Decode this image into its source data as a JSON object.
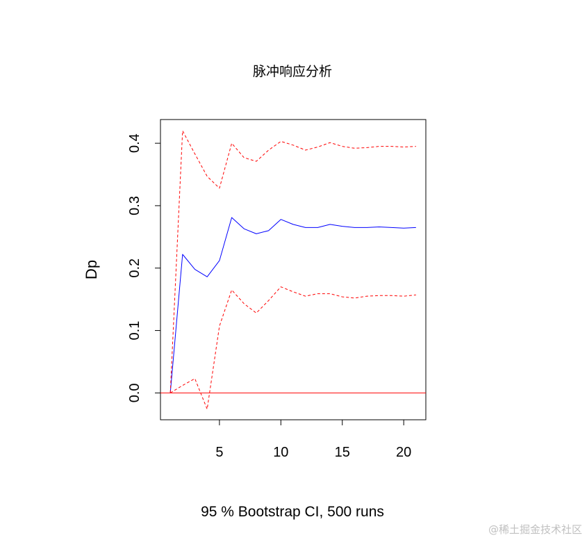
{
  "chart_data": {
    "type": "line",
    "title": "脉冲响应分析",
    "xlabel": "95 % Bootstrap CI,  500 runs",
    "ylabel": "Dp",
    "xlim": [
      0.2,
      21.8
    ],
    "ylim": [
      -0.043,
      0.438
    ],
    "xticks": [
      5,
      10,
      15,
      20
    ],
    "xtick_labels": [
      "5",
      "10",
      "15",
      "20"
    ],
    "yticks": [
      0.0,
      0.1,
      0.2,
      0.3,
      0.4
    ],
    "ytick_labels": [
      "0.0",
      "0.1",
      "0.2",
      "0.3",
      "0.4"
    ],
    "grid": false,
    "x": [
      1,
      2,
      3,
      4,
      5,
      6,
      7,
      8,
      9,
      10,
      11,
      12,
      13,
      14,
      15,
      16,
      17,
      18,
      19,
      20,
      21
    ],
    "series": [
      {
        "role": "estimate",
        "color": "#0000ff",
        "dashed": false,
        "values": [
          0.0,
          0.222,
          0.198,
          0.186,
          0.212,
          0.281,
          0.263,
          0.255,
          0.26,
          0.278,
          0.27,
          0.265,
          0.265,
          0.27,
          0.267,
          0.265,
          0.265,
          0.266,
          0.265,
          0.264,
          0.265
        ]
      },
      {
        "role": "upper",
        "color": "#ff0000",
        "dashed": true,
        "values": [
          0.0,
          0.42,
          0.383,
          0.347,
          0.328,
          0.4,
          0.377,
          0.371,
          0.389,
          0.403,
          0.397,
          0.389,
          0.394,
          0.401,
          0.395,
          0.392,
          0.393,
          0.395,
          0.395,
          0.394,
          0.395
        ]
      },
      {
        "role": "lower",
        "color": "#ff0000",
        "dashed": true,
        "values": [
          0.0,
          0.012,
          0.023,
          -0.026,
          0.107,
          0.165,
          0.143,
          0.128,
          0.148,
          0.17,
          0.162,
          0.155,
          0.159,
          0.159,
          0.154,
          0.152,
          0.155,
          0.156,
          0.156,
          0.155,
          0.157
        ]
      }
    ],
    "hline": {
      "y": 0.0,
      "color": "#ff0000"
    }
  },
  "watermark": "@稀土掘金技术社区"
}
